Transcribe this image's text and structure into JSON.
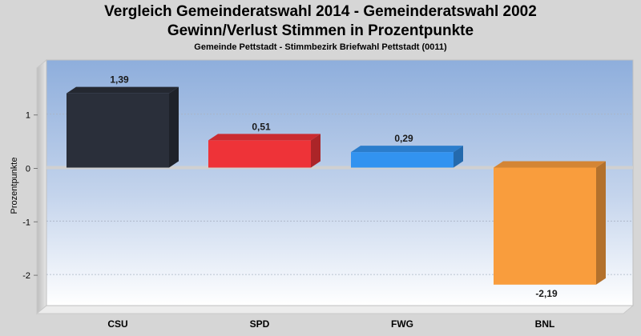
{
  "title": "Vergleich Gemeinderatswahl 2014 - Gemeinderatswahl 2002",
  "subtitle": "Gewinn/Verlust Stimmen in Prozentpunkte",
  "subsubtitle": "Gemeinde Pettstadt - Stimmbezirk Briefwahl Pettstadt (0011)",
  "chart_data": {
    "type": "bar",
    "title": "Vergleich Gemeinderatswahl 2014 - Gemeinderatswahl 2002",
    "subtitle": "Gewinn/Verlust Stimmen in Prozentpunkte",
    "xlabel": "",
    "ylabel": "Prozentpunkte",
    "categories": [
      "CSU",
      "SPD",
      "FWG",
      "BNL"
    ],
    "values": [
      1.39,
      0.51,
      0.29,
      -2.19
    ],
    "value_labels": [
      "1,39",
      "0,51",
      "0,29",
      "-2,19"
    ],
    "colors": [
      "#2a2f3a",
      "#ee3338",
      "#3293f0",
      "#f99d3d"
    ],
    "yticks": [
      1,
      0,
      -1,
      -2
    ],
    "ytick_labels": [
      "1",
      "0",
      "-1",
      "-2"
    ],
    "ylim": [
      -2.5,
      1.95
    ],
    "grid": true,
    "legend": "none"
  }
}
